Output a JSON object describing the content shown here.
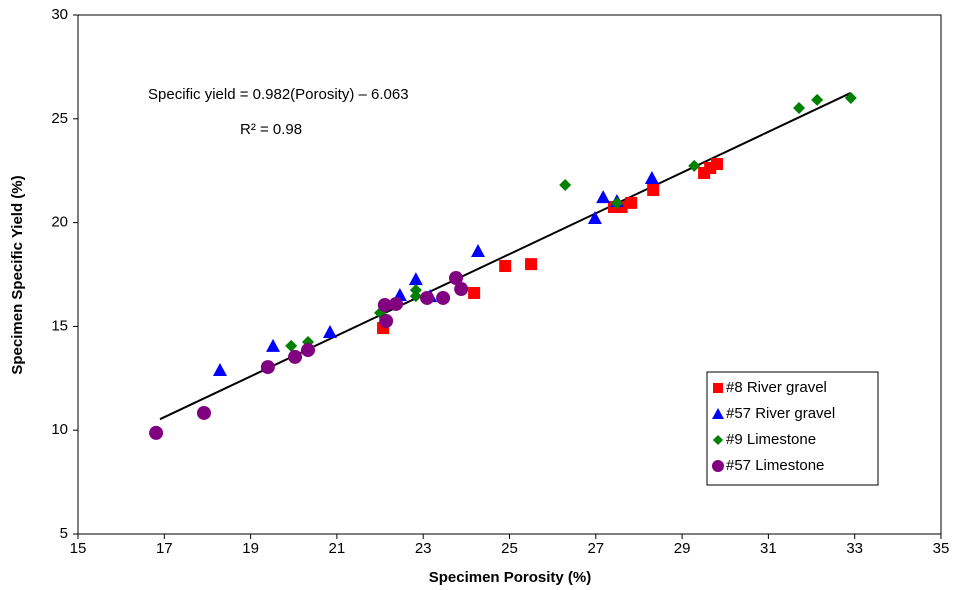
{
  "chart_data": {
    "type": "scatter",
    "xlabel": "Specimen Porosity (%)",
    "ylabel": "Specimen Specific Yield (%)",
    "annotations": [
      "Specific yield = 0.982(Porosity) – 6.063",
      "R² = 0.98"
    ],
    "xlim": [
      15,
      35
    ],
    "xticks": [
      15,
      17,
      19,
      21,
      23,
      25,
      27,
      29,
      31,
      33,
      35
    ],
    "ylim": [
      5,
      30
    ],
    "yticks": [
      5,
      10,
      15,
      20,
      25,
      30
    ],
    "legend": "lower right",
    "trendline": {
      "color": "#000000",
      "x": [
        16.9,
        32.9
      ],
      "y": [
        10.53,
        26.24
      ]
    },
    "series": [
      {
        "name": "#8 River gravel",
        "color": "#ff0000",
        "marker": "square",
        "x": [
          22.07,
          24.18,
          24.9,
          25.5,
          27.42,
          27.6,
          27.82,
          28.33,
          29.51,
          29.65,
          29.81
        ],
        "y": [
          14.92,
          16.61,
          17.91,
          18.0,
          20.75,
          20.75,
          20.95,
          21.57,
          22.39,
          22.63,
          22.82
        ]
      },
      {
        "name": "#57 River gravel",
        "color": "#0000ff",
        "marker": "triangle",
        "x": [
          18.29,
          19.52,
          20.84,
          22.46,
          22.83,
          23.16,
          24.27,
          26.98,
          27.17,
          27.49,
          28.3
        ],
        "y": [
          12.9,
          14.06,
          14.73,
          16.51,
          17.28,
          16.46,
          18.63,
          20.22,
          21.23,
          21.04,
          22.15
        ]
      },
      {
        "name": "#9 Limestone",
        "color": "#008000",
        "marker": "diamond",
        "x": [
          19.94,
          20.33,
          22.0,
          22.83,
          22.83,
          26.29,
          27.49,
          29.28,
          31.71,
          32.13,
          32.91
        ],
        "y": [
          14.06,
          14.25,
          15.65,
          16.75,
          16.46,
          21.81,
          20.94,
          22.73,
          25.52,
          25.91,
          26.0
        ]
      },
      {
        "name": "#57 Limestone",
        "color": "#800080",
        "marker": "circle",
        "x": [
          16.81,
          17.92,
          19.4,
          20.03,
          20.33,
          22.11,
          22.14,
          22.37,
          23.09,
          23.46,
          23.76,
          23.88
        ],
        "y": [
          9.87,
          10.83,
          13.04,
          13.53,
          13.86,
          16.03,
          15.26,
          16.08,
          16.37,
          16.37,
          17.33,
          16.8
        ]
      }
    ]
  }
}
